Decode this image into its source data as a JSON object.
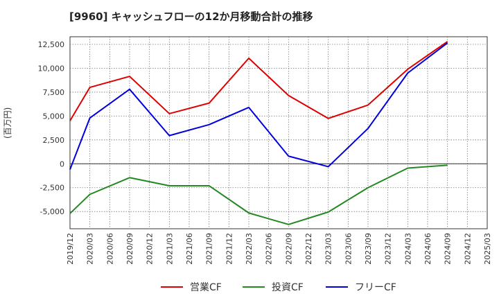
{
  "chart_data": {
    "type": "line",
    "title": "[9960]  キャッシュフローの12か月移動合計の推移",
    "ylabel": "(百万円)",
    "xlabel": "",
    "ylim": [
      -6800,
      13300
    ],
    "yticks": [
      12500,
      10000,
      7500,
      5000,
      2500,
      0,
      -2500,
      -5000
    ],
    "ytick_labels": [
      "12,500",
      "10,000",
      "7,500",
      "5,000",
      "2,500",
      "0",
      "-2,500",
      "-5,000"
    ],
    "categories": [
      "2019/12",
      "2020/03",
      "2020/06",
      "2020/09",
      "2020/12",
      "2021/03",
      "2021/06",
      "2021/09",
      "2021/12",
      "2022/03",
      "2022/06",
      "2022/09",
      "2022/12",
      "2023/03",
      "2023/06",
      "2023/09",
      "2023/12",
      "2024/03",
      "2024/06",
      "2024/09",
      "2024/12",
      "2025/03"
    ],
    "grid": true,
    "legend_position": "bottom",
    "series": [
      {
        "name": "営業CF",
        "color": "#dd0000",
        "values": [
          4500,
          8000,
          null,
          9150,
          null,
          5250,
          null,
          6350,
          null,
          11050,
          null,
          7150,
          null,
          4750,
          null,
          6150,
          null,
          9900,
          null,
          12800,
          null,
          null
        ]
      },
      {
        "name": "投資CF",
        "color": "#228822",
        "values": [
          -5200,
          -3200,
          null,
          -1450,
          null,
          -2300,
          null,
          -2300,
          null,
          -5150,
          null,
          -6350,
          null,
          -5050,
          null,
          -2500,
          null,
          -450,
          null,
          -150,
          null,
          null
        ]
      },
      {
        "name": "フリーCF",
        "color": "#0000dd",
        "values": [
          -600,
          4800,
          null,
          7800,
          null,
          2950,
          null,
          4100,
          null,
          5900,
          null,
          800,
          null,
          -300,
          null,
          3700,
          null,
          9500,
          null,
          12650,
          null,
          null
        ]
      }
    ]
  }
}
